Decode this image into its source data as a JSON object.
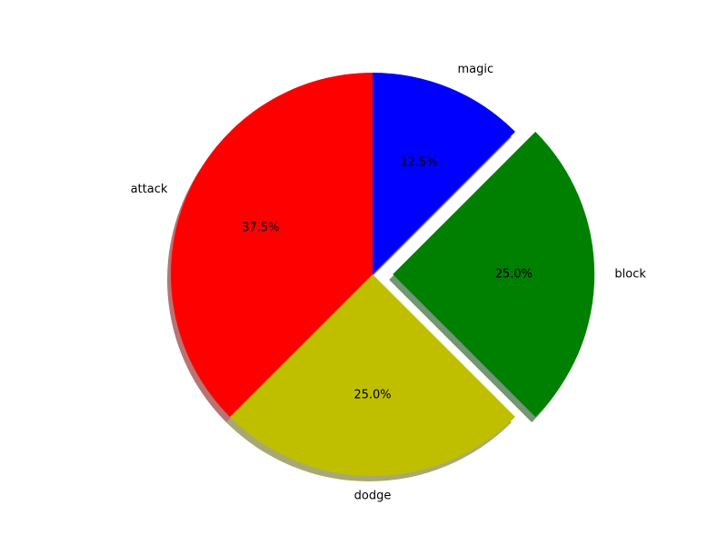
{
  "chart_data": {
    "type": "pie",
    "labels": [
      "magic",
      "block",
      "dodge",
      "attack"
    ],
    "values": [
      12.5,
      25.0,
      25.0,
      37.5
    ],
    "percent_labels": [
      "12.5%",
      "25.0%",
      "25.0%",
      "37.5%"
    ],
    "colors": [
      "#0000ff",
      "#008000",
      "#bfbf00",
      "#ff0000"
    ],
    "explode": [
      0,
      0.1,
      0,
      0
    ],
    "start_angle_deg": 90,
    "direction": "clockwise",
    "shadow": true,
    "legend": "none"
  }
}
